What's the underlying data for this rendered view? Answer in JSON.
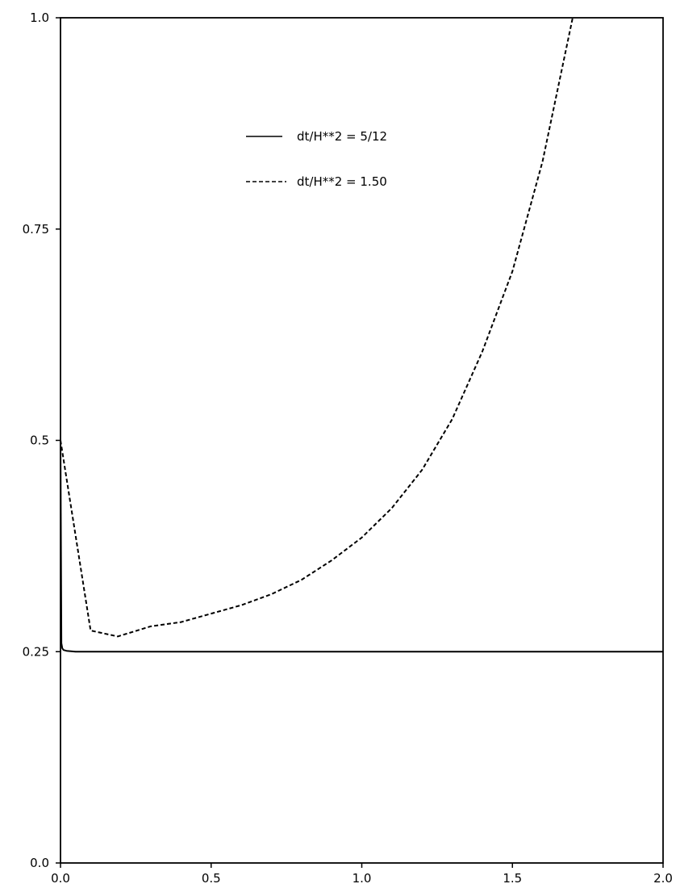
{
  "chart_data": {
    "type": "line",
    "title": "",
    "xlabel": "",
    "ylabel": "",
    "xlim": [
      0.0,
      2.0
    ],
    "ylim": [
      0.0,
      1.0
    ],
    "xticks": [
      "0.0",
      "0.5",
      "1.0",
      "1.5",
      "2.0"
    ],
    "yticks": [
      "0.0",
      "0.25",
      "0.5",
      "0.75",
      "1.0"
    ],
    "grid": false,
    "legend_position": "center",
    "series": [
      {
        "name": "dt/H**2 = 5/12",
        "style": "solid",
        "color": "#000000",
        "x": [
          0.0,
          0.003,
          0.006,
          0.01,
          0.02,
          0.05,
          0.1,
          0.5,
          1.0,
          1.5,
          2.0
        ],
        "y": [
          0.5,
          0.26,
          0.254,
          0.252,
          0.251,
          0.25,
          0.25,
          0.25,
          0.25,
          0.25,
          0.25
        ]
      },
      {
        "name": "dt/H**2 = 1.50",
        "style": "dashed",
        "color": "#000000",
        "x": [
          0.0,
          0.1,
          0.19,
          0.3,
          0.4,
          0.5,
          0.6,
          0.7,
          0.8,
          0.9,
          1.0,
          1.1,
          1.2,
          1.3,
          1.4,
          1.5,
          1.6,
          1.7
        ],
        "y": [
          0.5,
          0.275,
          0.268,
          0.28,
          0.285,
          0.295,
          0.305,
          0.318,
          0.335,
          0.358,
          0.385,
          0.42,
          0.465,
          0.525,
          0.605,
          0.7,
          0.83,
          1.0
        ]
      }
    ],
    "legend": [
      {
        "series": 0,
        "label": "dt/H**2 = 5/12"
      },
      {
        "series": 1,
        "label": "dt/H**2 = 1.50"
      }
    ]
  }
}
